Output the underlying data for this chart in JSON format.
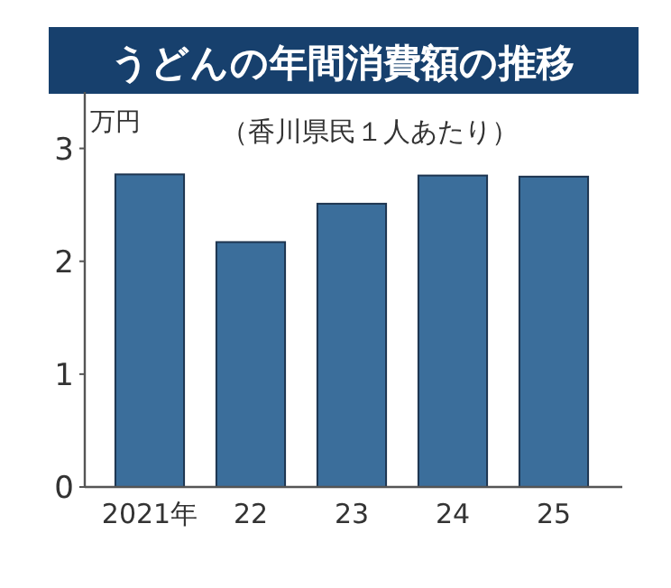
{
  "chart_data": {
    "type": "bar",
    "title": "うどんの年間消費額の推移",
    "subtitle": "（香川県民１人あたり）",
    "ylabel": "万円",
    "categories": [
      "2021年",
      "22",
      "23",
      "24",
      "25"
    ],
    "values": [
      2.77,
      2.17,
      2.51,
      2.76,
      2.75
    ],
    "color": "#3b6e9b",
    "ylim": [
      0,
      3.5
    ],
    "yticks": [
      0,
      1,
      2,
      3
    ],
    "grid": false
  }
}
